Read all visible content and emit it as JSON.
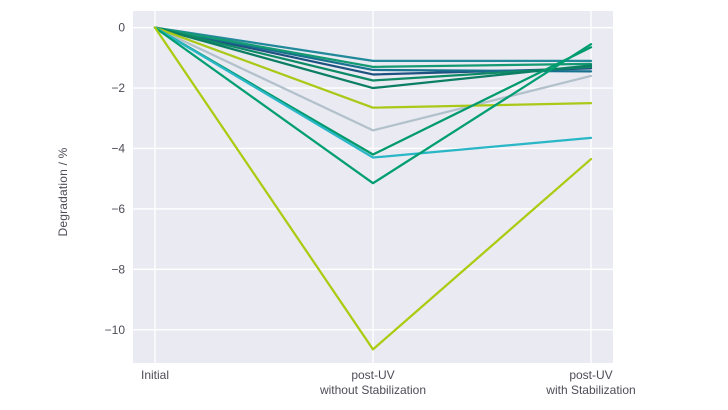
{
  "chart_data": {
    "type": "line",
    "title": "",
    "xlabel": "",
    "ylabel": "Degradation / %",
    "categories": [
      "Initial",
      "post-UV without Stabilization",
      "post-UV with Stabilization"
    ],
    "x_tick_labels": [
      [
        "Initial"
      ],
      [
        "post-UV",
        "without Stabilization"
      ],
      [
        "post-UV",
        "with Stabilization"
      ]
    ],
    "y_ticks": [
      0,
      -2,
      -4,
      -6,
      -8,
      -10
    ],
    "y_tick_labels": [
      "0",
      "−2",
      "−4",
      "−6",
      "−8",
      "−10"
    ],
    "ylim": [
      -11.1,
      0.55
    ],
    "grid": true,
    "legend": false,
    "colors": {
      "plot_background": "#e9eaf2",
      "grid": "#ffffff",
      "tick_text": "#4d4d58"
    },
    "series": [
      {
        "color": "#1f5181",
        "values": [
          0,
          -1.55,
          -1.35
        ]
      },
      {
        "color": "#17718f",
        "values": [
          0,
          -1.4,
          -1.45
        ]
      },
      {
        "color": "#21899a",
        "values": [
          0,
          -1.1,
          -1.1
        ]
      },
      {
        "color": "#149a73",
        "values": [
          0,
          -1.3,
          -1.2
        ]
      },
      {
        "color": "#0e8a66",
        "values": [
          0,
          -1.75,
          -1.3
        ]
      },
      {
        "color": "#0c7e63",
        "values": [
          0,
          -2.0,
          -1.25
        ]
      },
      {
        "color": "#b2c1cb",
        "values": [
          0,
          -3.4,
          -1.6
        ]
      },
      {
        "color": "#a9c918",
        "values": [
          0,
          -2.65,
          -2.5
        ]
      },
      {
        "color": "#009a6c",
        "values": [
          0,
          -4.2,
          -0.65
        ]
      },
      {
        "color": "#29b6c6",
        "values": [
          0,
          -4.3,
          -3.65
        ]
      },
      {
        "color": "#009e72",
        "values": [
          0,
          -5.15,
          -0.55
        ]
      },
      {
        "color": "#a9cc11",
        "values": [
          0,
          -10.65,
          -4.35
        ]
      }
    ]
  }
}
